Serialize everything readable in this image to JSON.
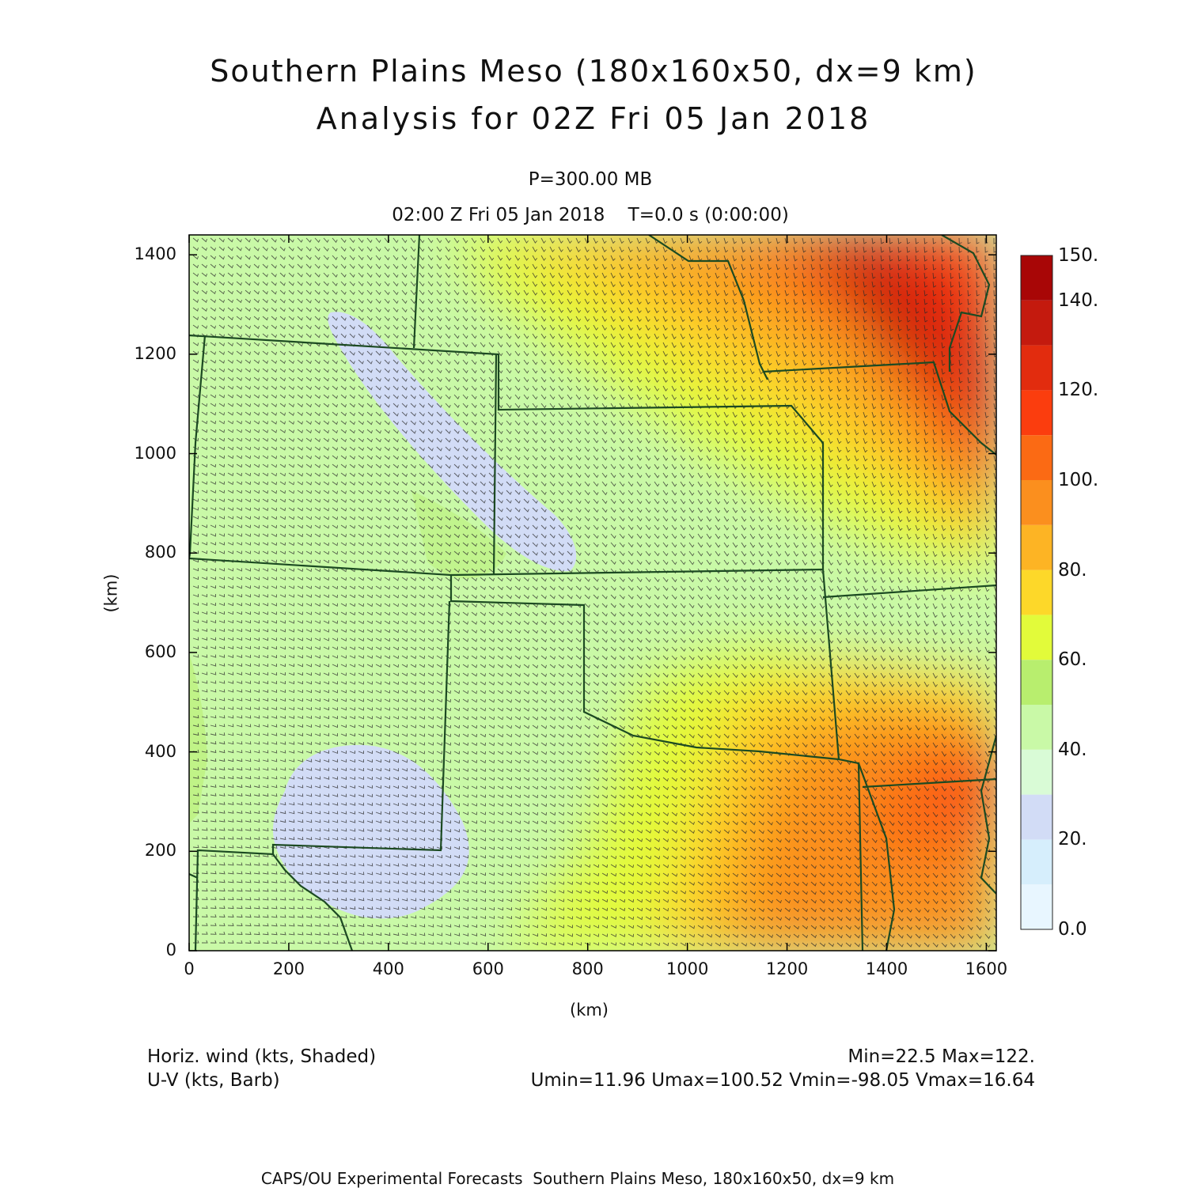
{
  "header": {
    "title": "Southern Plains Meso (180x160x50, dx=9 km)",
    "subtitle": "Analysis for 02Z Fri 05 Jan 2018",
    "level": "P=300.00 MB",
    "valid_time": "02:00 Z Fri 05 Jan 2018    T=0.0 s (0:00:00)"
  },
  "axes": {
    "x_label": "(km)",
    "y_label": "(km)",
    "x_ticks": [
      "0",
      "200",
      "400",
      "600",
      "800",
      "1000",
      "1200",
      "1400",
      "1600"
    ],
    "y_ticks": [
      "0",
      "200",
      "400",
      "600",
      "800",
      "1000",
      "1200",
      "1400"
    ],
    "x_range_km": [
      0,
      1620
    ],
    "y_range_km": [
      0,
      1440
    ]
  },
  "colorbar": {
    "labels": [
      "0.0",
      "20.",
      "40.",
      "60.",
      "80.",
      "100.",
      "120.",
      "140.",
      "150."
    ],
    "bins": [
      0,
      10,
      20,
      30,
      40,
      50,
      60,
      70,
      80,
      90,
      100,
      110,
      120,
      130,
      140,
      150
    ],
    "colors": [
      "#e8f6ff",
      "#d6eefc",
      "#d2dcf6",
      "#d9fbd6",
      "#c9f9a7",
      "#b8ee6e",
      "#e2fb3a",
      "#fdd829",
      "#fdb424",
      "#fb8f1e",
      "#fb6a14",
      "#fb3d0e",
      "#e22c0e",
      "#c41a0e",
      "#a80606"
    ]
  },
  "footer_info": {
    "field1": "Horiz. wind (kts, Shaded)",
    "field2": "U-V (kts, Barb)",
    "stats1": "Min=22.5 Max=122.",
    "stats2": "Umin=11.96 Umax=100.52 Vmin=-98.05 Vmax=16.64",
    "credit": "CAPS/OU Experimental Forecasts  Southern Plains Meso, 180x160x50, dx=9 km"
  }
}
